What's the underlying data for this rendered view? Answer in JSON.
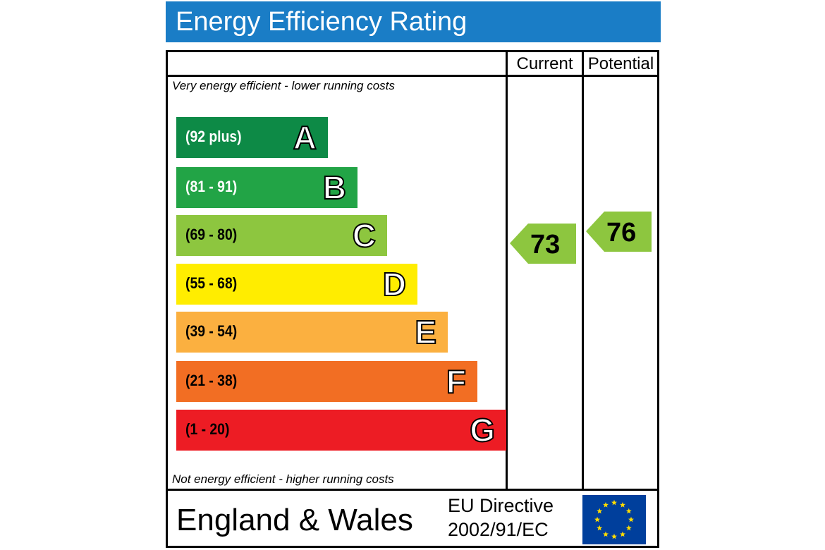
{
  "title": "Energy Efficiency Rating",
  "columns": {
    "current": "Current",
    "potential": "Potential"
  },
  "top_note": "Very energy efficient - lower running costs",
  "bottom_note": "Not energy efficient - higher running costs",
  "footer": {
    "country": "England & Wales",
    "directive_line1": "EU Directive",
    "directive_line2": "2002/91/EC"
  },
  "colors": {
    "title_bar": "#1a7dc6",
    "arrow": "#8dc63f",
    "flag": "#003f9c",
    "stars": "#ffdd00"
  },
  "chart_data": {
    "type": "bar",
    "bands": [
      {
        "letter": "A",
        "range": "(92 plus)",
        "color": "#0d8a46",
        "range_color": "#ffffff"
      },
      {
        "letter": "B",
        "range": "(81 - 91)",
        "color": "#22a446",
        "range_color": "#ffffff"
      },
      {
        "letter": "C",
        "range": "(69 - 80)",
        "color": "#8dc63f",
        "range_color": "#000000"
      },
      {
        "letter": "D",
        "range": "(55 - 68)",
        "color": "#ffed00",
        "range_color": "#000000"
      },
      {
        "letter": "E",
        "range": "(39 - 54)",
        "color": "#fbb040",
        "range_color": "#000000"
      },
      {
        "letter": "F",
        "range": "(21 - 38)",
        "color": "#f26e23",
        "range_color": "#000000"
      },
      {
        "letter": "G",
        "range": "(1 - 20)",
        "color": "#ed1c24",
        "range_color": "#000000"
      }
    ],
    "current": 73,
    "potential": 76
  }
}
